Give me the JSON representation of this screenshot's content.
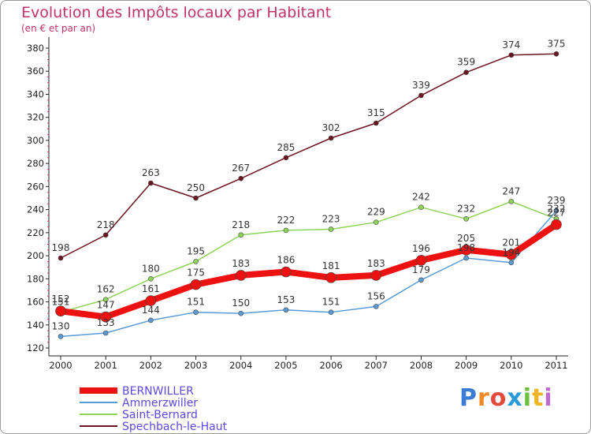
{
  "chart_data": {
    "type": "line",
    "title": "Evolution des Impôts locaux par Habitant",
    "subtitle": "(en € et par an)",
    "x": [
      "2000",
      "2001",
      "2002",
      "2003",
      "2004",
      "2005",
      "2006",
      "2007",
      "2008",
      "2009",
      "2010",
      "2011"
    ],
    "ylim": [
      120,
      380
    ],
    "yticks": [
      120,
      140,
      160,
      180,
      200,
      220,
      240,
      260,
      280,
      300,
      320,
      340,
      360,
      380
    ],
    "grid": false,
    "legend_position": "bottom-left",
    "series": [
      {
        "name": "Spechbach-le-Haut",
        "color": "#6b1420",
        "values": [
          198,
          218,
          263,
          250,
          267,
          285,
          302,
          315,
          339,
          359,
          374,
          375
        ],
        "labels": [
          "198",
          "218",
          "263",
          "250",
          "267",
          "285",
          "302",
          "315",
          "339",
          "359",
          "374",
          "375"
        ]
      },
      {
        "name": "Saint-Bernard",
        "color": "#8fd45a",
        "values": [
          151,
          162,
          180,
          195,
          218,
          222,
          223,
          229,
          242,
          232,
          247,
          232
        ],
        "labels": [
          "151",
          "162",
          "180",
          "195",
          "218",
          "222",
          "223",
          "229",
          "242",
          "232",
          "247",
          "232"
        ]
      },
      {
        "name": "Ammerzwiller",
        "color": "#5a9bd5",
        "values": [
          130,
          133,
          144,
          151,
          150,
          153,
          151,
          156,
          179,
          198,
          194,
          239
        ],
        "labels": [
          "130",
          "133",
          "144",
          "151",
          "150",
          "153",
          "151",
          "156",
          "179",
          "198",
          "194",
          "239"
        ]
      },
      {
        "name": "BERNWILLER",
        "color": "#ee1111",
        "values": [
          152,
          147,
          161,
          175,
          183,
          186,
          181,
          183,
          196,
          205,
          201,
          227
        ],
        "labels": [
          "152",
          "147",
          "161",
          "175",
          "183",
          "186",
          "181",
          "183",
          "196",
          "205",
          "201",
          "227"
        ]
      }
    ],
    "legend": [
      "BERNWILLER",
      "Ammerzwiller",
      "Saint-Bernard",
      "Spechbach-le-Haut"
    ]
  },
  "brand": {
    "p": "P",
    "r": "r",
    "o": "o",
    "x": "x",
    "i": "i",
    "t": "t",
    "i2": "i"
  }
}
